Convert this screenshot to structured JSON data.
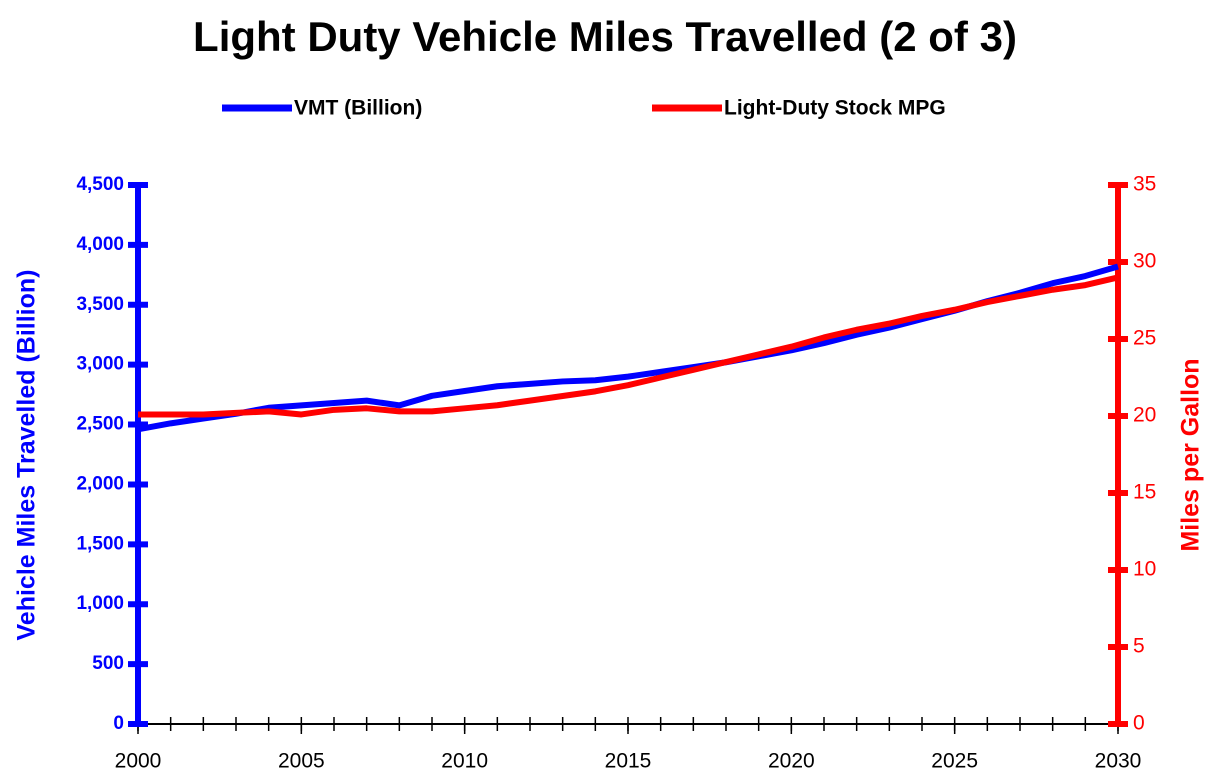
{
  "chart_data": {
    "type": "line",
    "title": "Light Duty Vehicle Miles Travelled (2 of 3)",
    "ylabel": "Vehicle Miles Travelled (Billion)",
    "y2label": "Miles per Gallon",
    "x": [
      2000,
      2001,
      2002,
      2003,
      2004,
      2005,
      2006,
      2007,
      2008,
      2009,
      2010,
      2011,
      2012,
      2013,
      2014,
      2015,
      2016,
      2017,
      2018,
      2019,
      2020,
      2021,
      2022,
      2023,
      2024,
      2025,
      2026,
      2027,
      2028,
      2029,
      2030
    ],
    "xlim": [
      2000,
      2030
    ],
    "xticks": [
      2000,
      2005,
      2010,
      2015,
      2020,
      2025,
      2030
    ],
    "ylim": [
      0,
      4500
    ],
    "yticks": [
      0,
      500,
      {
        "value": 1000,
        "label": "1,000"
      },
      {
        "value": 1500,
        "label": "1,500"
      },
      {
        "value": 2000,
        "label": "2,000"
      },
      {
        "value": 2500,
        "label": "2,500"
      },
      {
        "value": 3000,
        "label": "3,000"
      },
      {
        "value": 3500,
        "label": "3,500"
      },
      {
        "value": 4000,
        "label": "4,000"
      },
      {
        "value": 4500,
        "label": "4,500"
      }
    ],
    "y2lim": [
      0,
      35
    ],
    "y2ticks": [
      0,
      5,
      10,
      15,
      20,
      25,
      30,
      35
    ],
    "legend": "top",
    "series": [
      {
        "name": "VMT (Billion)",
        "color": "#0000ff",
        "values": [
          2460,
          2510,
          2550,
          2590,
          2640,
          2660,
          2680,
          2700,
          2660,
          2740,
          2780,
          2820,
          2840,
          2860,
          2870,
          2900,
          2940,
          2980,
          3020,
          3070,
          3120,
          3180,
          3250,
          3310,
          3380,
          3450,
          3530,
          3600,
          3680,
          3740,
          3820
        ]
      },
      {
        "name": "Light-Duty Stock MPG",
        "color": "#ff0000",
        "axis": "y2",
        "values": [
          20.1,
          20.1,
          20.1,
          20.2,
          20.3,
          20.1,
          20.4,
          20.5,
          20.3,
          20.3,
          20.5,
          20.7,
          21.0,
          21.3,
          21.6,
          22.0,
          22.5,
          23.0,
          23.5,
          24.0,
          24.5,
          25.1,
          25.6,
          26.0,
          26.5,
          26.9,
          27.4,
          27.8,
          28.2,
          28.5,
          29.0
        ]
      }
    ]
  }
}
